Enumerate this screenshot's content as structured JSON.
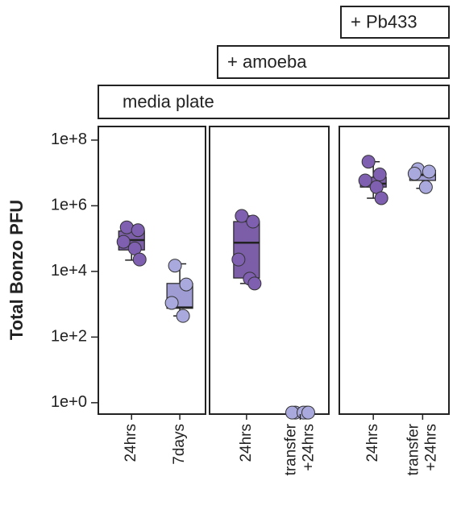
{
  "chart_data": {
    "type": "box",
    "y_label": "Total Bonzo PFU",
    "log_scale": true,
    "ylim": [
      0.45,
      260000000
    ],
    "yticks": [
      {
        "value": 1,
        "label": "1e+0"
      },
      {
        "value": 100,
        "label": "1e+2"
      },
      {
        "value": 10000,
        "label": "1e+4"
      },
      {
        "value": 1000000,
        "label": "1e+6"
      },
      {
        "value": 100000000,
        "label": "1e+8"
      }
    ],
    "headers": [
      "media plate",
      "+ amoeba",
      "+ Pb433"
    ],
    "panels": [
      {
        "categories": [
          [
            "24hrs"
          ],
          [
            "7days"
          ]
        ],
        "groups": [
          {
            "color": "#7b5ea7",
            "point_color": "#7e5fb0",
            "box": {
              "whisker_low": 22000,
              "q1": 45000,
              "median": 90000,
              "q3": 170000,
              "whisker_high": 250000
            },
            "points": [
              220000,
              180000,
              80000,
              50000,
              23000
            ]
          },
          {
            "color": "#9e9cd2",
            "point_color": "#aaa9dd",
            "box": {
              "whisker_low": 440,
              "q1": 750,
              "median": 800,
              "q3": 4300,
              "whisker_high": 17000
            },
            "points": [
              15000,
              4000,
              1100,
              440
            ]
          }
        ]
      },
      {
        "categories": [
          [
            "24hrs"
          ],
          [
            "transfer",
            "+24hrs"
          ]
        ],
        "groups": [
          {
            "color": "#7b5ea7",
            "point_color": "#7e5fb0",
            "box": {
              "whisker_low": 4300,
              "q1": 6300,
              "median": 75000,
              "q3": 330000,
              "whisker_high": 490000
            },
            "points": [
              490000,
              330000,
              23000,
              6000,
              4300
            ]
          },
          {
            "color": "#9e9cd2",
            "point_color": "#aaa9dd",
            "box": {
              "whisker_low": 0.5,
              "q1": 0.5,
              "median": 0.5,
              "q3": 0.5,
              "whisker_high": 0.5
            },
            "points": [
              0.5,
              0.5,
              0.5,
              0.5,
              0.5
            ]
          }
        ]
      },
      {
        "categories": [
          [
            "24hrs"
          ],
          [
            "transfer",
            "+24hrs"
          ]
        ],
        "groups": [
          {
            "color": "#7b5ea7",
            "point_color": "#7e5fb0",
            "box": {
              "whisker_low": 1700000,
              "q1": 3700000,
              "median": 4700000,
              "q3": 7400000,
              "whisker_high": 22000000
            },
            "points": [
              22000000,
              9000000,
              5900000,
              3700000,
              1700000
            ]
          },
          {
            "color": "#9e9cd2",
            "point_color": "#aaa9dd",
            "box": {
              "whisker_low": 3400000,
              "q1": 5900000,
              "median": 8700000,
              "q3": 12000000,
              "whisker_high": 14000000
            },
            "points": [
              13000000,
              11000000,
              9500000,
              3700000
            ]
          }
        ]
      }
    ]
  }
}
